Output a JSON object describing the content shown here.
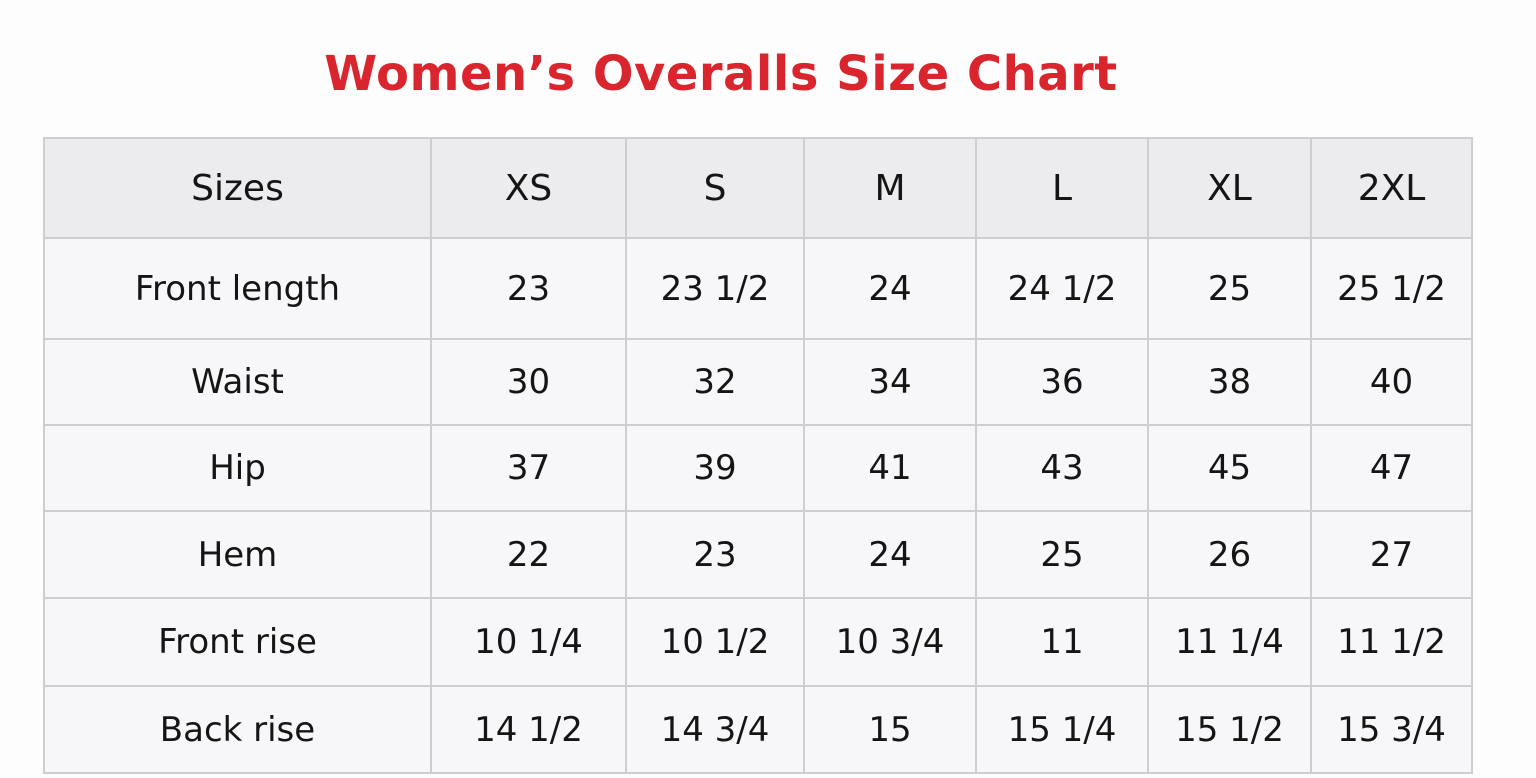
{
  "title": "Women’s Overalls Size Chart",
  "table": {
    "header": [
      "Sizes",
      "XS",
      "S",
      "M",
      "L",
      "XL",
      "2XL"
    ],
    "rows": [
      [
        "Front length",
        "23",
        "23 1/2",
        "24",
        "24 1/2",
        "25",
        "25 1/2"
      ],
      [
        "Waist",
        "30",
        "32",
        "34",
        "36",
        "38",
        "40"
      ],
      [
        "Hip",
        "37",
        "39",
        "41",
        "43",
        "45",
        "47"
      ],
      [
        "Hem",
        "22",
        "23",
        "24",
        "25",
        "26",
        "27"
      ],
      [
        "Front rise",
        "10 1/4",
        "10 1/2",
        "10 3/4",
        "11",
        "11 1/4",
        "11 1/2"
      ],
      [
        "Back rise",
        "14 1/2",
        "14 3/4",
        "15",
        "15 1/4",
        "15 1/2",
        "15 3/4"
      ]
    ]
  }
}
